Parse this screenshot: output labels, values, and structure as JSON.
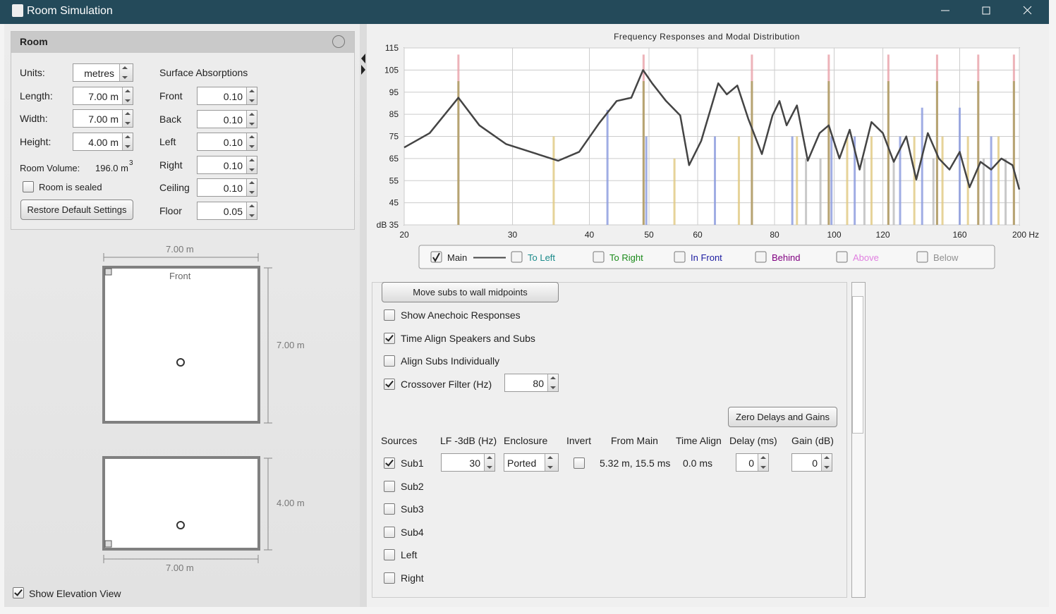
{
  "window": {
    "title": "Room Simulation"
  },
  "room": {
    "header": "Room",
    "fields": [
      {
        "label": "Units:",
        "value": "metres"
      },
      {
        "label": "Length:",
        "value": "7.00 m"
      },
      {
        "label": "Width:",
        "value": "7.00 m"
      },
      {
        "label": "Height:",
        "value": "4.00 m"
      }
    ],
    "volume_label": "Room Volume:",
    "volume": "196.0 m",
    "volume_exponent": "3",
    "sealed_label": "Room is sealed",
    "sealed": false,
    "restore_button": "Restore Default Settings",
    "absorptions_title": "Surface Absorptions",
    "surfaces": [
      {
        "label": "Front",
        "value": "0.10"
      },
      {
        "label": "Back",
        "value": "0.10"
      },
      {
        "label": "Left",
        "value": "0.10"
      },
      {
        "label": "Right",
        "value": "0.10"
      },
      {
        "label": "Ceiling",
        "value": "0.10"
      },
      {
        "label": "Floor",
        "value": "0.05"
      }
    ]
  },
  "plan": {
    "width_label": "7.00 m",
    "depth_label": "7.00 m",
    "front_label": "Front",
    "elevation_height_label": "4.00 m",
    "elevation_width_label": "7.00 m",
    "show_elevation_label": "Show Elevation View",
    "show_elevation": true
  },
  "chart": {
    "type": "line",
    "title": "Frequency Responses and Modal Distribution",
    "xscale": "log",
    "xlim": [
      20,
      200
    ],
    "xticks": [
      20,
      30,
      40,
      50,
      60,
      80,
      100,
      120,
      160,
      {
        "value": 200,
        "label": "200 Hz"
      }
    ],
    "ylim": [
      35,
      115
    ],
    "yticks": [
      {
        "value": 35,
        "label": "dB 35"
      },
      45,
      55,
      65,
      75,
      85,
      95,
      105,
      115
    ],
    "grid": true,
    "series": [
      {
        "name": "Main",
        "color": "#444444",
        "checked": true,
        "x": [
          20,
          22,
          24.5,
          26.5,
          29.3,
          35.6,
          38.5,
          41.5,
          44.3,
          46.8,
          48.9,
          50.6,
          53.3,
          56.2,
          58.1,
          60.8,
          64.8,
          66.9,
          69.6,
          72.5,
          76.3,
          79.4,
          81.5,
          83.7,
          87,
          90.6,
          94.7,
          98,
          102,
          106,
          110,
          115,
          120,
          125,
          131,
          136,
          142,
          148,
          154,
          160,
          166,
          173,
          180,
          187,
          195,
          200
        ],
        "values": [
          70,
          76.5,
          92.5,
          80,
          71.5,
          64,
          68,
          81,
          91,
          92.5,
          105,
          99,
          91,
          84.5,
          62,
          73,
          99,
          94,
          98,
          83,
          67,
          84.5,
          91,
          80,
          89,
          64,
          76.5,
          80,
          65,
          78,
          60,
          81.5,
          76.5,
          63.5,
          75,
          55.5,
          76.5,
          65,
          60,
          68,
          52,
          63.5,
          60,
          65,
          62,
          51
        ]
      },
      {
        "name": "To Left",
        "color": "#1a8a8a",
        "checked": false
      },
      {
        "name": "To Right",
        "color": "#1a8a1a",
        "checked": false
      },
      {
        "name": "In Front",
        "color": "#1a1aa0",
        "checked": false
      },
      {
        "name": "Behind",
        "color": "#800080",
        "checked": false
      },
      {
        "name": "Above",
        "color": "#e080e0",
        "checked": false
      },
      {
        "name": "Below",
        "color": "#909090",
        "checked": false
      }
    ],
    "mode_series": [
      {
        "color": "#e8a0a8",
        "x": [
          24.5,
          49,
          73.5,
          98,
          122.5,
          147,
          171.5,
          196
        ],
        "values": [
          112,
          112,
          112,
          112,
          112,
          112,
          112,
          112
        ]
      },
      {
        "color": "#a8a060",
        "x": [
          24.5,
          49,
          73.5,
          98,
          122.5,
          147,
          171.5,
          196
        ],
        "values": [
          100,
          100,
          100,
          100,
          100,
          100,
          100,
          100
        ]
      },
      {
        "color": "#e0c880",
        "x": [
          35,
          55,
          70,
          87,
          105,
          115,
          135,
          150,
          165,
          185
        ],
        "values": [
          75,
          65,
          75,
          75,
          75,
          75,
          75,
          75,
          75,
          75
        ]
      },
      {
        "color": "#8898dd",
        "x": [
          42.8,
          49.5,
          64,
          85.5,
          99,
          108,
          128,
          139,
          160,
          180
        ],
        "values": [
          87,
          75,
          75,
          75,
          75,
          75,
          75,
          88,
          88,
          75
        ]
      },
      {
        "color": "#bbbbbb",
        "x": [
          90,
          95,
          112,
          125,
          145,
          175,
          190
        ],
        "values": [
          65,
          65,
          65,
          65,
          65,
          65,
          65
        ]
      }
    ]
  },
  "options": {
    "move_button": "Move subs to wall midpoints",
    "checks": [
      {
        "label": "Show Anechoic Responses",
        "checked": false
      },
      {
        "label": "Time Align Speakers and Subs",
        "checked": true
      },
      {
        "label": "Align Subs Individually",
        "checked": false
      },
      {
        "label": "Crossover Filter (Hz)",
        "checked": true
      }
    ],
    "crossover": "80",
    "zero_button": "Zero Delays and Gains"
  },
  "sources": {
    "headers": [
      "Sources",
      "LF -3dB (Hz)",
      "Enclosure",
      "Invert",
      "From Main",
      "Time Align",
      "Delay (ms)",
      "Gain (dB)"
    ],
    "rows": [
      {
        "name": "Sub1",
        "checked": true,
        "lf": "30",
        "enclosure": "Ported",
        "invert": false,
        "from_main": "5.32 m, 15.5 ms",
        "time_align": "0.0 ms",
        "delay": "0",
        "gain": "0"
      },
      {
        "name": "Sub2",
        "checked": false
      },
      {
        "name": "Sub3",
        "checked": false
      },
      {
        "name": "Sub4",
        "checked": false
      },
      {
        "name": "Left",
        "checked": false
      },
      {
        "name": "Right",
        "checked": false
      }
    ]
  }
}
